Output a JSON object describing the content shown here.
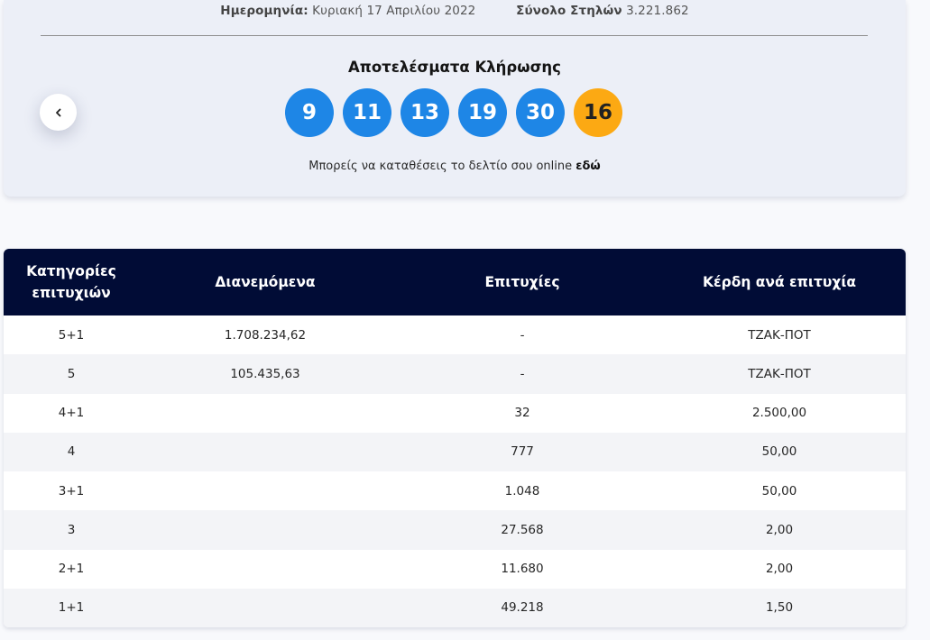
{
  "draw_info": {
    "date_label": "Ημερομηνία:",
    "date_value": "Κυριακή 17 Απριλίου 2022",
    "columns_label": "Σύνολο Στηλών",
    "columns_value": "3.221.862"
  },
  "results": {
    "title": "Αποτελέσματα Κλήρωσης",
    "numbers": [
      "9",
      "11",
      "13",
      "19",
      "30"
    ],
    "bonus": "16",
    "colors": {
      "main_ball": "#1e86e6",
      "bonus_ball": "#fca913"
    }
  },
  "online": {
    "text": "Μπορείς να καταθέσεις το δελτίο σου online",
    "link": "εδώ"
  },
  "nav": {
    "prev_icon": "chevron-left-icon"
  },
  "table": {
    "header_color": "#010c36",
    "headers": {
      "category_line1": "Κατηγορίες",
      "category_line2": "επιτυχιών",
      "distributed": "Διανεμόμενα",
      "winners": "Επιτυχίες",
      "prize": "Κέρδη ανά επιτυχία"
    },
    "rows": [
      {
        "category": "5+1",
        "distributed": "1.708.234,62",
        "winners": "-",
        "prize": "ΤΖΑΚ-ΠΟΤ"
      },
      {
        "category": "5",
        "distributed": "105.435,63",
        "winners": "-",
        "prize": "ΤΖΑΚ-ΠΟΤ"
      },
      {
        "category": "4+1",
        "distributed": "",
        "winners": "32",
        "prize": "2.500,00"
      },
      {
        "category": "4",
        "distributed": "",
        "winners": "777",
        "prize": "50,00"
      },
      {
        "category": "3+1",
        "distributed": "",
        "winners": "1.048",
        "prize": "50,00"
      },
      {
        "category": "3",
        "distributed": "",
        "winners": "27.568",
        "prize": "2,00"
      },
      {
        "category": "2+1",
        "distributed": "",
        "winners": "11.680",
        "prize": "2,00"
      },
      {
        "category": "1+1",
        "distributed": "",
        "winners": "49.218",
        "prize": "1,50"
      }
    ]
  }
}
